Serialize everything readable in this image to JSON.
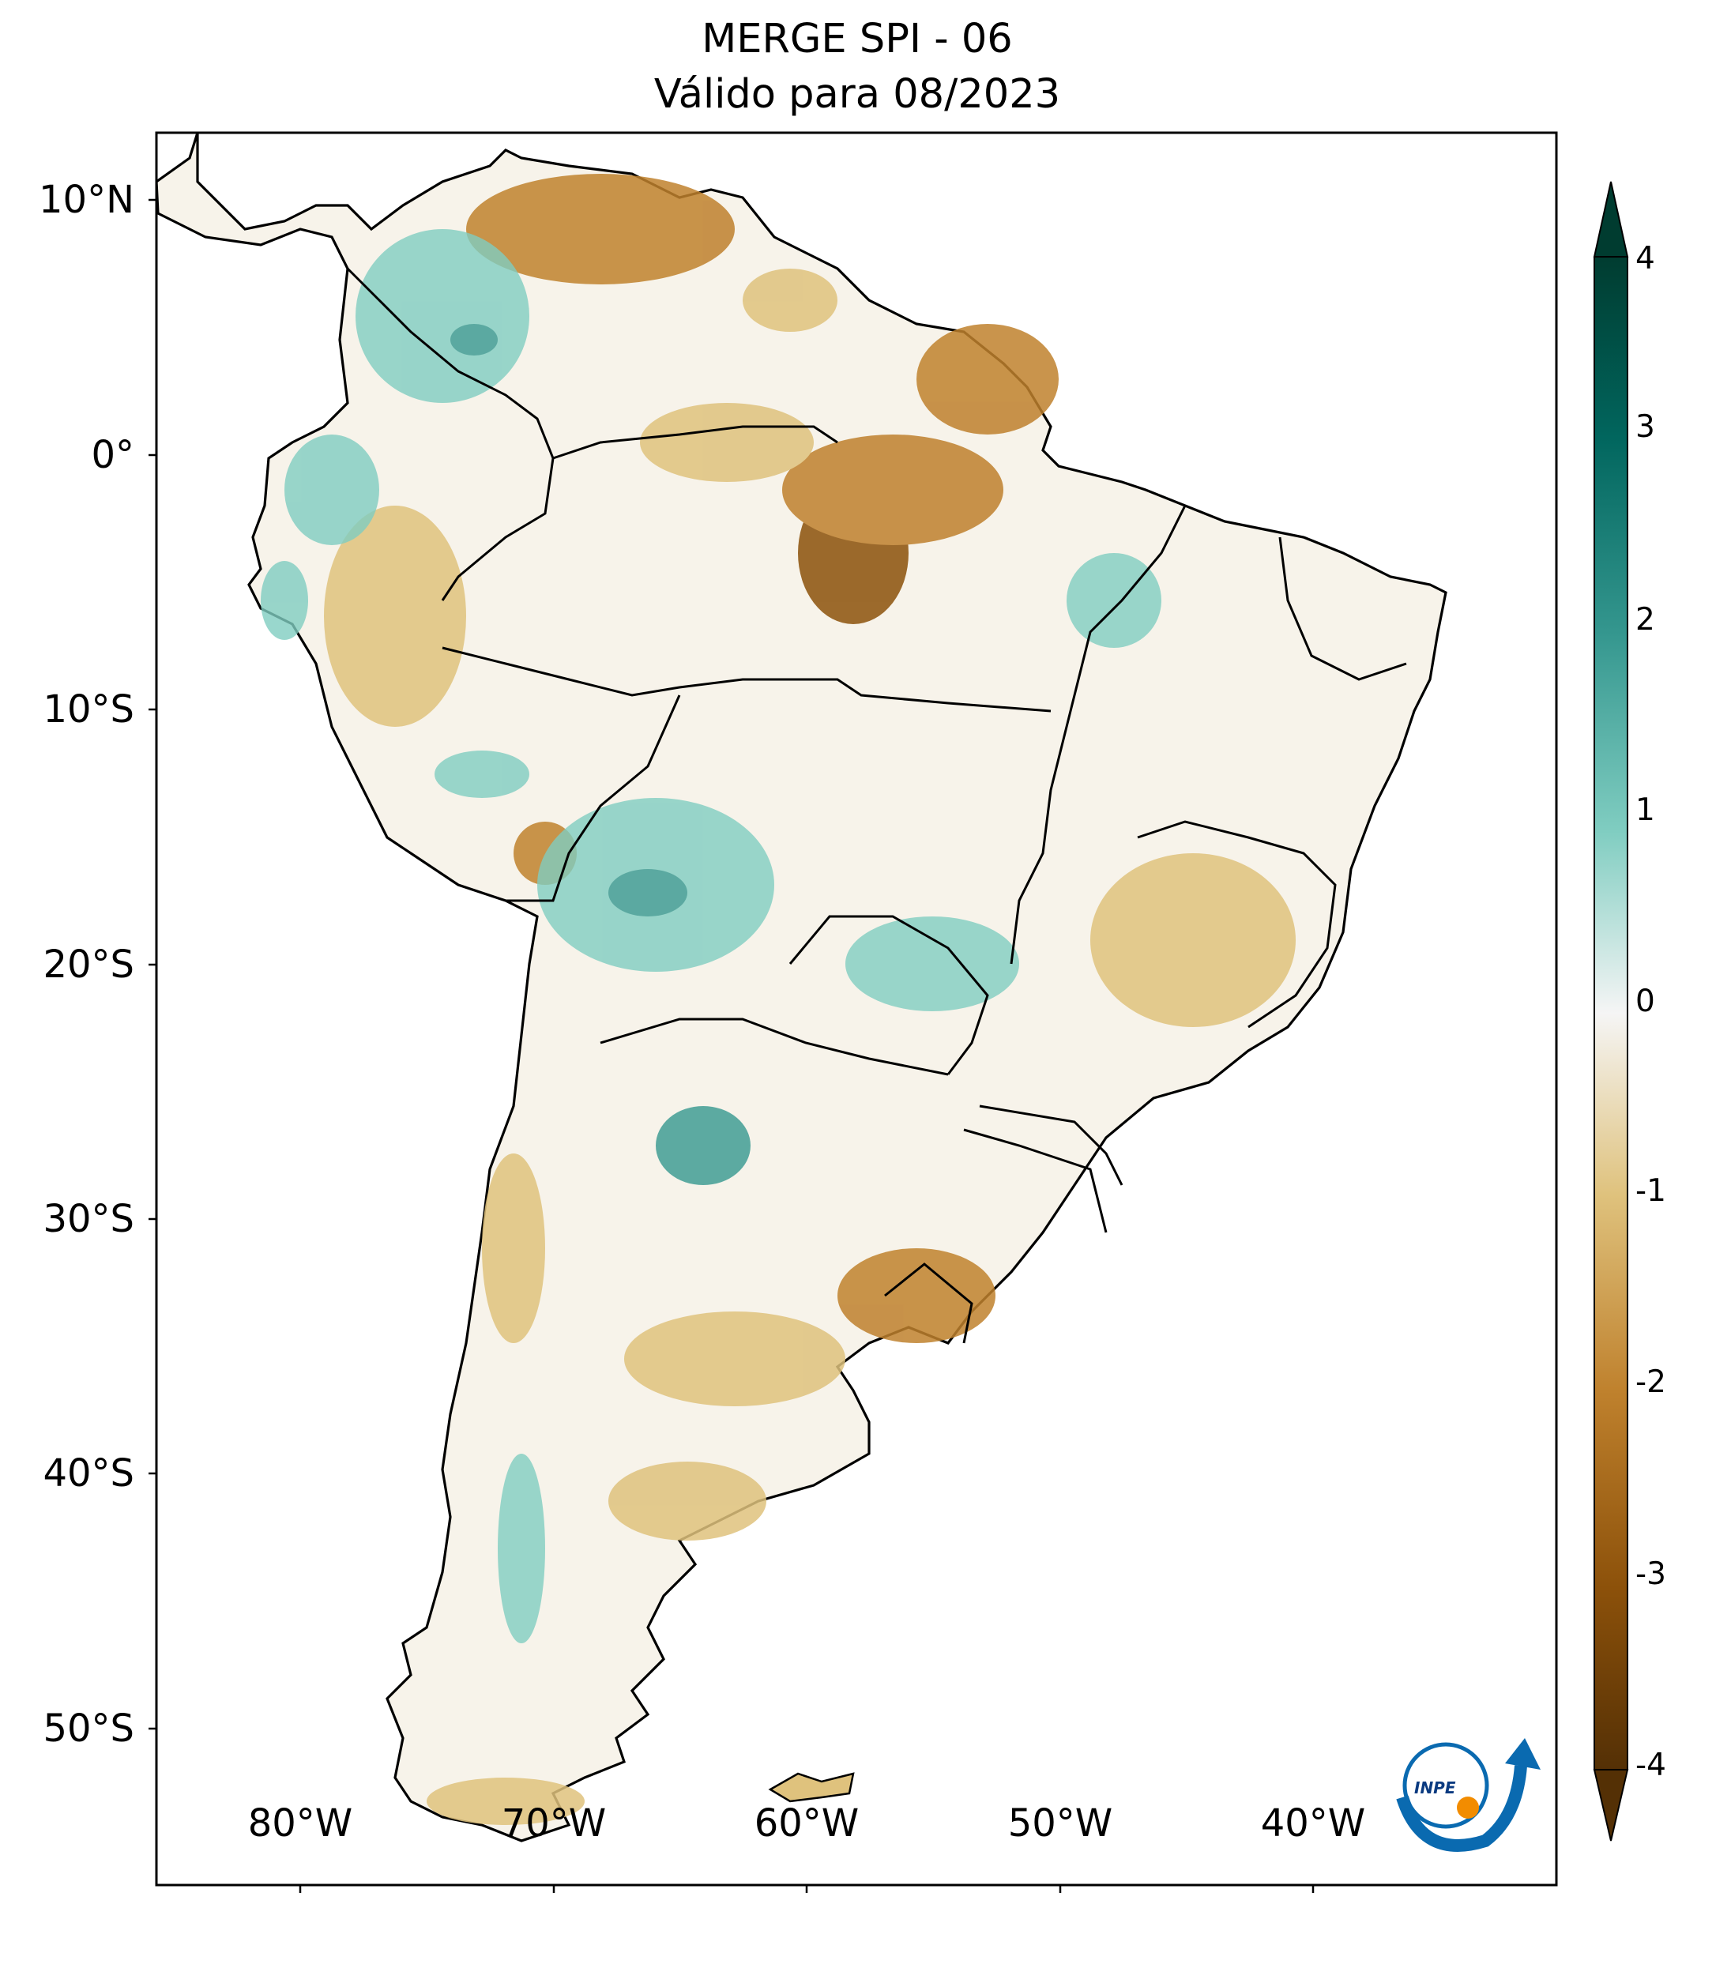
{
  "title": {
    "line1": "MERGE   SPI - 06",
    "line2": "Válido para 08/2023"
  },
  "axes": {
    "lat_ticks": [
      "10°N",
      "0°",
      "10°S",
      "20°S",
      "30°S",
      "40°S",
      "50°S"
    ],
    "lon_ticks": [
      "80°W",
      "70°W",
      "60°W",
      "50°W",
      "40°W"
    ]
  },
  "colorbar": {
    "ticks": [
      "4",
      "3",
      "2",
      "1",
      "0",
      "-1",
      "-2",
      "-3",
      "-4"
    ],
    "colors": {
      "max": "#003c30",
      "high": "#01665e",
      "mid_high": "#35978f",
      "low_high": "#80cdc1",
      "near_zero": "#f5f5f5",
      "low_low": "#dfc27d",
      "mid_low": "#bf812d",
      "low": "#8c510a",
      "min": "#543005"
    }
  },
  "logo": {
    "text": "INPE"
  }
}
